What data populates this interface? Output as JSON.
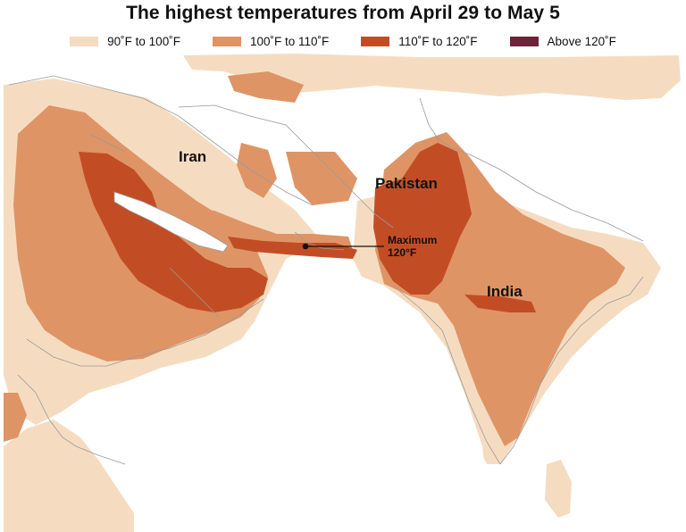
{
  "title": "The highest temperatures from April 29 to May 5",
  "legend": [
    {
      "label": "90˚F to 100˚F",
      "color": "#f5dcc1"
    },
    {
      "label": "100˚F to 110˚F",
      "color": "#df9466"
    },
    {
      "label": "110˚F to 120˚F",
      "color": "#c24d25"
    },
    {
      "label": "Above 120˚F",
      "color": "#6c2438"
    }
  ],
  "map": {
    "labels": {
      "iran": "Iran",
      "pakistan": "Pakistan",
      "india": "India"
    },
    "annotation": {
      "line1": "Maximum",
      "line2": "120°F"
    },
    "colors": {
      "land": "#ffffff",
      "sea": "#ffffff",
      "border": "#9a9a9a"
    }
  }
}
